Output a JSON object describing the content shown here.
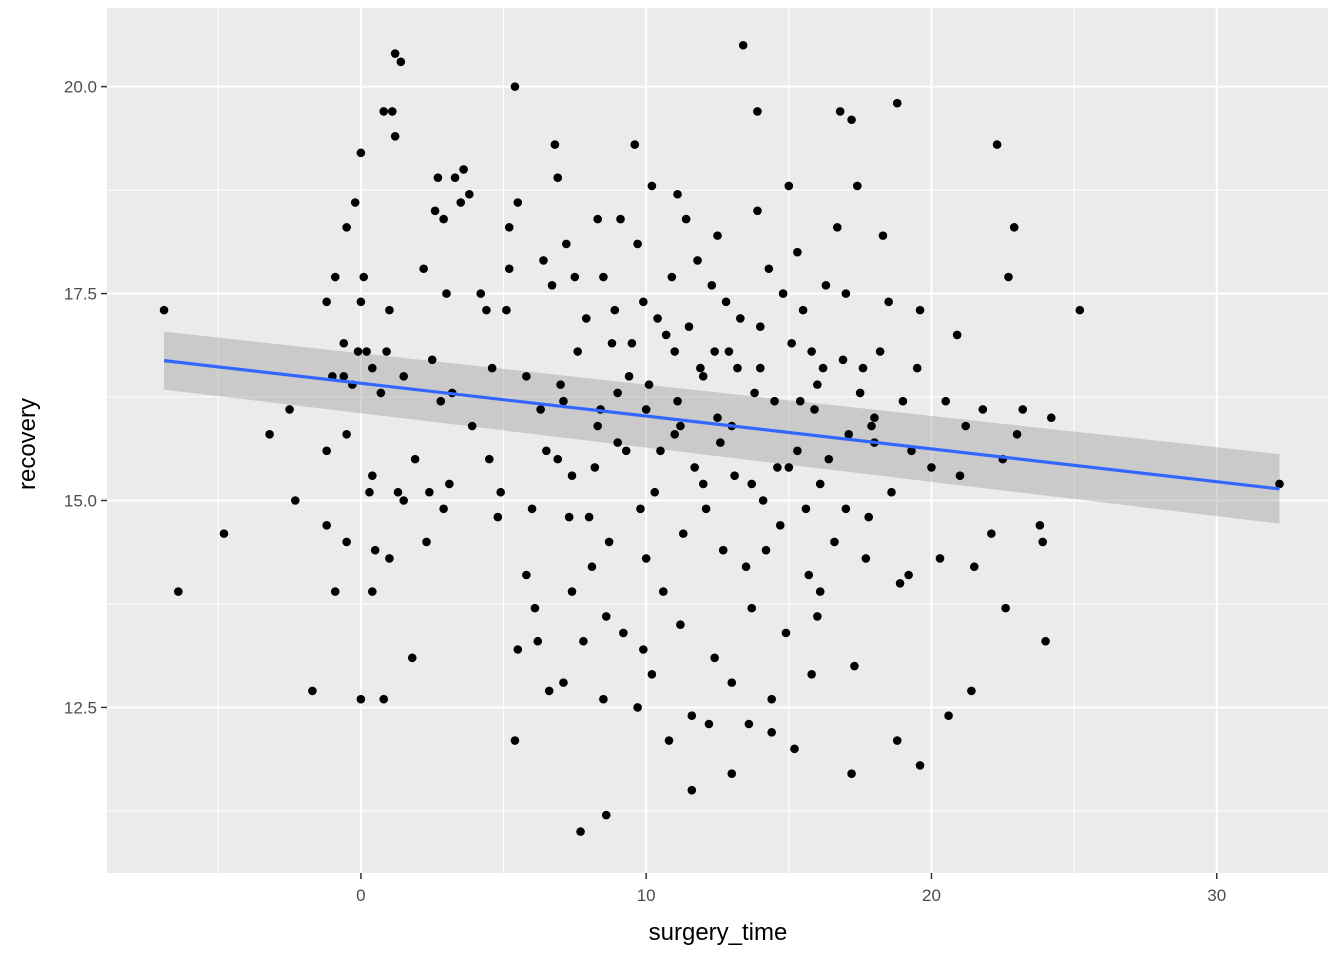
{
  "chart_data": {
    "type": "scatter",
    "title": "",
    "xlabel": "surgery_time",
    "ylabel": "recovery",
    "xlim": [
      -8.9,
      33.9
    ],
    "ylim": [
      10.5,
      20.95
    ],
    "x_ticks": [
      0,
      10,
      20,
      30
    ],
    "x_tick_labels": [
      "0",
      "10",
      "20",
      "30"
    ],
    "y_ticks": [
      12.5,
      15.0,
      17.5,
      20.0
    ],
    "y_tick_labels": [
      "12.5",
      "15.0",
      "17.5",
      "20.0"
    ],
    "grid": true,
    "panel_background": "#ebebeb",
    "point_color": "#000000",
    "points": [
      [
        -6.9,
        17.3
      ],
      [
        -6.4,
        13.9
      ],
      [
        -4.8,
        14.6
      ],
      [
        -3.2,
        15.8
      ],
      [
        -2.5,
        16.1
      ],
      [
        -2.3,
        15.0
      ],
      [
        -1.7,
        12.7
      ],
      [
        -1.2,
        17.4
      ],
      [
        -1.2,
        15.6
      ],
      [
        -1.2,
        14.7
      ],
      [
        -1.0,
        16.5
      ],
      [
        -0.9,
        17.7
      ],
      [
        -0.9,
        13.9
      ],
      [
        -0.6,
        16.5
      ],
      [
        -0.6,
        16.9
      ],
      [
        -0.5,
        18.3
      ],
      [
        -0.5,
        15.8
      ],
      [
        -0.5,
        14.5
      ],
      [
        -0.3,
        16.4
      ],
      [
        -0.2,
        18.6
      ],
      [
        -0.1,
        16.8
      ],
      [
        0.0,
        19.2
      ],
      [
        0.0,
        17.4
      ],
      [
        0.0,
        12.6
      ],
      [
        0.1,
        17.7
      ],
      [
        0.2,
        16.8
      ],
      [
        0.3,
        15.1
      ],
      [
        0.4,
        16.6
      ],
      [
        0.4,
        15.3
      ],
      [
        0.4,
        13.9
      ],
      [
        0.5,
        14.4
      ],
      [
        0.7,
        16.3
      ],
      [
        0.8,
        19.7
      ],
      [
        0.8,
        12.6
      ],
      [
        0.9,
        16.8
      ],
      [
        1.0,
        17.3
      ],
      [
        1.0,
        14.3
      ],
      [
        1.1,
        19.7
      ],
      [
        1.2,
        20.4
      ],
      [
        1.2,
        19.4
      ],
      [
        1.3,
        15.1
      ],
      [
        1.4,
        20.3
      ],
      [
        1.5,
        15.0
      ],
      [
        1.5,
        16.5
      ],
      [
        1.8,
        13.1
      ],
      [
        1.9,
        15.5
      ],
      [
        2.2,
        17.8
      ],
      [
        2.3,
        14.5
      ],
      [
        2.4,
        15.1
      ],
      [
        2.6,
        18.5
      ],
      [
        2.7,
        18.9
      ],
      [
        2.8,
        16.2
      ],
      [
        2.9,
        18.4
      ],
      [
        3.0,
        17.5
      ],
      [
        3.1,
        15.2
      ],
      [
        3.3,
        18.9
      ],
      [
        3.5,
        18.6
      ],
      [
        3.6,
        19.0
      ],
      [
        3.8,
        18.7
      ],
      [
        4.2,
        17.5
      ],
      [
        4.4,
        17.3
      ],
      [
        4.6,
        16.6
      ],
      [
        4.9,
        15.1
      ],
      [
        5.1,
        17.3
      ],
      [
        5.2,
        17.8
      ],
      [
        5.4,
        20.0
      ],
      [
        5.4,
        12.1
      ],
      [
        5.5,
        13.2
      ],
      [
        5.8,
        14.1
      ],
      [
        6.1,
        13.7
      ],
      [
        6.4,
        17.9
      ],
      [
        6.6,
        12.7
      ],
      [
        6.8,
        19.3
      ],
      [
        7.1,
        16.2
      ],
      [
        7.2,
        18.1
      ],
      [
        7.4,
        15.3
      ],
      [
        7.5,
        17.7
      ],
      [
        7.7,
        11.0
      ],
      [
        7.8,
        13.3
      ],
      [
        8.1,
        14.2
      ],
      [
        8.3,
        15.9
      ],
      [
        8.5,
        17.7
      ],
      [
        8.6,
        11.2
      ],
      [
        8.8,
        16.9
      ],
      [
        9.0,
        16.3
      ],
      [
        9.1,
        18.4
      ],
      [
        9.2,
        13.4
      ],
      [
        9.4,
        16.5
      ],
      [
        9.6,
        19.3
      ],
      [
        9.7,
        12.5
      ],
      [
        9.9,
        17.4
      ],
      [
        10.0,
        16.1
      ],
      [
        10.2,
        18.8
      ],
      [
        10.4,
        17.2
      ],
      [
        10.5,
        15.6
      ],
      [
        10.6,
        13.9
      ],
      [
        10.8,
        12.1
      ],
      [
        10.9,
        17.7
      ],
      [
        11.0,
        16.8
      ],
      [
        11.2,
        15.9
      ],
      [
        11.4,
        18.4
      ],
      [
        11.6,
        11.5
      ],
      [
        11.8,
        17.9
      ],
      [
        12.0,
        15.2
      ],
      [
        12.2,
        12.3
      ],
      [
        12.4,
        16.8
      ],
      [
        12.6,
        15.7
      ],
      [
        12.8,
        17.4
      ],
      [
        13.0,
        11.7
      ],
      [
        13.2,
        16.6
      ],
      [
        13.4,
        20.5
      ],
      [
        13.6,
        12.3
      ],
      [
        13.7,
        15.2
      ],
      [
        13.9,
        19.7
      ],
      [
        14.0,
        16.6
      ],
      [
        14.2,
        14.4
      ],
      [
        14.4,
        12.2
      ],
      [
        14.6,
        15.4
      ],
      [
        14.8,
        17.5
      ],
      [
        15.0,
        18.8
      ],
      [
        15.2,
        12.0
      ],
      [
        15.4,
        16.2
      ],
      [
        15.6,
        14.9
      ],
      [
        15.8,
        16.8
      ],
      [
        16.0,
        13.6
      ],
      [
        16.2,
        16.6
      ],
      [
        16.4,
        15.5
      ],
      [
        16.8,
        19.7
      ],
      [
        17.0,
        17.5
      ],
      [
        17.2,
        19.6
      ],
      [
        17.2,
        11.7
      ],
      [
        17.4,
        18.8
      ],
      [
        17.6,
        16.6
      ],
      [
        17.8,
        14.8
      ],
      [
        18.0,
        15.7
      ],
      [
        18.3,
        18.2
      ],
      [
        18.5,
        17.4
      ],
      [
        18.8,
        19.8
      ],
      [
        18.8,
        12.1
      ],
      [
        19.0,
        16.2
      ],
      [
        19.2,
        14.1
      ],
      [
        19.6,
        17.3
      ],
      [
        19.6,
        11.8
      ],
      [
        20.0,
        15.4
      ],
      [
        20.3,
        14.3
      ],
      [
        20.6,
        12.4
      ],
      [
        20.9,
        17.0
      ],
      [
        21.2,
        15.9
      ],
      [
        21.4,
        12.7
      ],
      [
        21.8,
        16.1
      ],
      [
        22.1,
        14.6
      ],
      [
        22.3,
        19.3
      ],
      [
        22.5,
        15.5
      ],
      [
        22.6,
        13.7
      ],
      [
        22.7,
        17.7
      ],
      [
        22.9,
        18.3
      ],
      [
        23.0,
        15.8
      ],
      [
        23.2,
        16.1
      ],
      [
        23.8,
        14.7
      ],
      [
        23.9,
        14.5
      ],
      [
        24.0,
        13.3
      ],
      [
        24.2,
        16.0
      ],
      [
        25.2,
        17.3
      ],
      [
        32.2,
        15.2
      ],
      [
        5.2,
        18.3
      ],
      [
        5.8,
        16.5
      ],
      [
        6.3,
        16.1
      ],
      [
        6.7,
        17.6
      ],
      [
        6.9,
        15.5
      ],
      [
        7.3,
        14.8
      ],
      [
        7.6,
        16.8
      ],
      [
        7.9,
        17.2
      ],
      [
        8.2,
        15.4
      ],
      [
        8.4,
        16.1
      ],
      [
        8.7,
        14.5
      ],
      [
        8.9,
        17.3
      ],
      [
        9.3,
        15.6
      ],
      [
        9.5,
        16.9
      ],
      [
        9.8,
        14.9
      ],
      [
        10.1,
        16.4
      ],
      [
        10.3,
        15.1
      ],
      [
        10.7,
        17.0
      ],
      [
        11.1,
        16.2
      ],
      [
        11.3,
        14.6
      ],
      [
        11.5,
        17.1
      ],
      [
        11.7,
        15.4
      ],
      [
        11.9,
        16.6
      ],
      [
        12.1,
        14.9
      ],
      [
        12.3,
        17.6
      ],
      [
        12.5,
        16.0
      ],
      [
        12.7,
        14.4
      ],
      [
        12.9,
        16.8
      ],
      [
        13.1,
        15.3
      ],
      [
        13.3,
        17.2
      ],
      [
        13.5,
        14.2
      ],
      [
        13.8,
        16.3
      ],
      [
        14.1,
        15.0
      ],
      [
        14.3,
        17.8
      ],
      [
        14.5,
        16.2
      ],
      [
        14.7,
        14.7
      ],
      [
        15.1,
        16.9
      ],
      [
        15.3,
        15.6
      ],
      [
        15.5,
        17.3
      ],
      [
        15.7,
        14.1
      ],
      [
        15.9,
        16.1
      ],
      [
        16.1,
        15.2
      ],
      [
        16.3,
        17.6
      ],
      [
        16.6,
        14.5
      ],
      [
        16.9,
        16.7
      ],
      [
        17.1,
        15.8
      ],
      [
        17.5,
        16.3
      ],
      [
        17.7,
        14.3
      ],
      [
        17.9,
        15.9
      ],
      [
        18.2,
        16.8
      ],
      [
        18.6,
        15.1
      ],
      [
        18.9,
        14.0
      ],
      [
        19.3,
        15.6
      ],
      [
        19.5,
        16.6
      ],
      [
        6.0,
        14.9
      ],
      [
        6.5,
        15.6
      ],
      [
        7.0,
        16.4
      ],
      [
        8.0,
        14.8
      ],
      [
        9.0,
        15.7
      ],
      [
        10.0,
        14.3
      ],
      [
        11.0,
        15.8
      ],
      [
        12.0,
        16.5
      ],
      [
        13.0,
        15.9
      ],
      [
        14.0,
        17.1
      ],
      [
        15.0,
        15.4
      ],
      [
        16.0,
        16.4
      ],
      [
        17.0,
        14.9
      ],
      [
        18.0,
        16.0
      ],
      [
        4.5,
        15.5
      ],
      [
        4.8,
        14.8
      ],
      [
        3.2,
        16.3
      ],
      [
        3.9,
        15.9
      ],
      [
        2.9,
        14.9
      ],
      [
        2.5,
        16.7
      ],
      [
        20.5,
        16.2
      ],
      [
        21.0,
        15.3
      ],
      [
        21.5,
        14.2
      ],
      [
        6.2,
        13.3
      ],
      [
        7.4,
        13.9
      ],
      [
        8.6,
        13.6
      ],
      [
        9.9,
        13.2
      ],
      [
        11.2,
        13.5
      ],
      [
        12.4,
        13.1
      ],
      [
        13.7,
        13.7
      ],
      [
        14.9,
        13.4
      ],
      [
        16.1,
        13.9
      ],
      [
        17.3,
        13.0
      ],
      [
        5.5,
        18.6
      ],
      [
        6.9,
        18.9
      ],
      [
        8.3,
        18.4
      ],
      [
        9.7,
        18.1
      ],
      [
        11.1,
        18.7
      ],
      [
        12.5,
        18.2
      ],
      [
        13.9,
        18.5
      ],
      [
        15.3,
        18.0
      ],
      [
        16.7,
        18.3
      ],
      [
        7.1,
        12.8
      ],
      [
        8.5,
        12.6
      ],
      [
        10.2,
        12.9
      ],
      [
        11.6,
        12.4
      ],
      [
        13.0,
        12.8
      ],
      [
        14.4,
        12.6
      ],
      [
        15.8,
        12.9
      ]
    ],
    "trend_line": {
      "color": "#3366ff",
      "x": [
        -6.9,
        32.2
      ],
      "y": [
        16.69,
        15.14
      ],
      "ci_lower": [
        16.34,
        14.72
      ],
      "ci_upper": [
        17.04,
        15.56
      ],
      "ci_color": "#999999"
    }
  }
}
